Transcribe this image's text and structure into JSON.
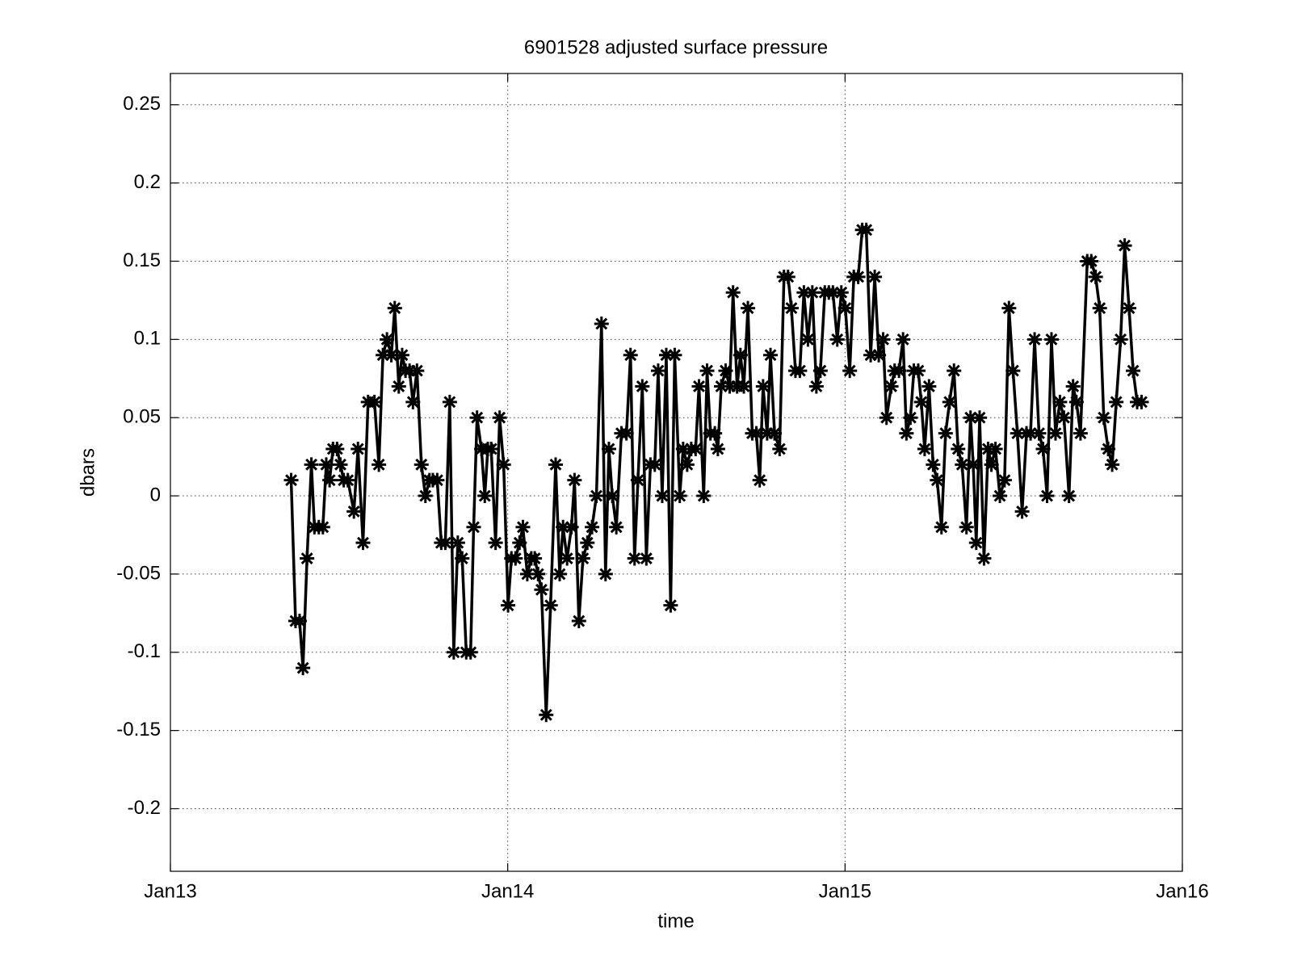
{
  "chart_data": {
    "type": "line",
    "title": "6901528 adjusted surface pressure",
    "xlabel": "time",
    "ylabel": "dbars",
    "color": "#000000",
    "marker": "asterisk",
    "grid": true,
    "xlim": [
      2013,
      2016
    ],
    "xticks": [
      {
        "value": 2013,
        "label": "Jan13"
      },
      {
        "value": 2014,
        "label": "Jan14"
      },
      {
        "value": 2015,
        "label": "Jan15"
      },
      {
        "value": 2016,
        "label": "Jan16"
      }
    ],
    "ylim": [
      -0.24,
      0.27
    ],
    "yticks": [
      -0.2,
      -0.15,
      -0.1,
      -0.05,
      0,
      0.05,
      0.1,
      0.15,
      0.2,
      0.25
    ],
    "x": [
      2013.358,
      2013.371,
      2013.383,
      2013.393,
      2013.405,
      2013.418,
      2013.427,
      2013.44,
      2013.452,
      2013.462,
      2013.472,
      2013.482,
      2013.494,
      2013.504,
      2013.514,
      2013.526,
      2013.544,
      2013.556,
      2013.571,
      2013.586,
      2013.605,
      2013.618,
      2013.63,
      2013.642,
      2013.655,
      2013.665,
      2013.677,
      2013.687,
      2013.697,
      2013.709,
      2013.719,
      2013.731,
      2013.744,
      2013.756,
      2013.768,
      2013.778,
      2013.791,
      2013.803,
      2013.815,
      2013.828,
      2013.84,
      2013.852,
      2013.865,
      2013.877,
      2013.89,
      2013.899,
      2013.909,
      2013.922,
      2013.932,
      2013.941,
      2013.951,
      2013.964,
      2013.976,
      2013.988,
      2014.001,
      2014.011,
      2014.023,
      2014.035,
      2014.045,
      2014.058,
      2014.07,
      2014.08,
      2014.09,
      2014.1,
      2014.114,
      2014.127,
      2014.142,
      2014.154,
      2014.164,
      2014.176,
      2014.189,
      2014.198,
      2014.211,
      2014.223,
      2014.236,
      2014.25,
      2014.263,
      2014.278,
      2014.29,
      2014.3,
      2014.31,
      2014.322,
      2014.337,
      2014.352,
      2014.364,
      2014.376,
      2014.386,
      2014.399,
      2014.411,
      2014.423,
      2014.436,
      2014.446,
      2014.458,
      2014.47,
      2014.483,
      2014.495,
      2014.51,
      2014.52,
      2014.532,
      2014.544,
      2014.557,
      2014.567,
      2014.581,
      2014.591,
      2014.601,
      2014.614,
      2014.623,
      2014.633,
      2014.646,
      2014.658,
      2014.668,
      2014.68,
      2014.69,
      2014.7,
      2014.712,
      2014.725,
      2014.737,
      2014.747,
      2014.757,
      2014.769,
      2014.779,
      2014.791,
      2014.806,
      2014.819,
      2014.831,
      2014.841,
      2014.853,
      2014.866,
      2014.878,
      2014.89,
      2014.903,
      2014.915,
      2014.927,
      2014.94,
      2014.952,
      2014.964,
      2014.977,
      2014.989,
      2015.001,
      2015.014,
      2015.026,
      2015.039,
      2015.051,
      2015.063,
      2015.076,
      2015.088,
      2015.1,
      2015.113,
      2015.123,
      2015.137,
      2015.147,
      2015.16,
      2015.172,
      2015.182,
      2015.194,
      2015.204,
      2015.217,
      2015.226,
      2015.236,
      2015.249,
      2015.261,
      2015.273,
      2015.286,
      2015.298,
      2015.31,
      2015.323,
      2015.335,
      2015.347,
      2015.36,
      2015.372,
      2015.38,
      2015.389,
      2015.399,
      2015.412,
      2015.424,
      2015.434,
      2015.446,
      2015.459,
      2015.473,
      2015.486,
      2015.498,
      2015.511,
      2015.525,
      2015.538,
      2015.55,
      2015.562,
      2015.575,
      2015.587,
      2015.599,
      2015.612,
      2015.624,
      2015.637,
      2015.649,
      2015.664,
      2015.676,
      2015.686,
      2015.698,
      2015.718,
      2015.73,
      2015.743,
      2015.755,
      2015.767,
      2015.78,
      2015.792,
      2015.804,
      2015.817,
      2015.829,
      2015.842,
      2015.854,
      2015.866,
      2015.879
    ],
    "values": [
      0.01,
      -0.08,
      -0.08,
      -0.11,
      -0.04,
      0.02,
      -0.02,
      -0.02,
      -0.02,
      0.02,
      0.01,
      0.03,
      0.03,
      0.02,
      0.01,
      0.01,
      -0.01,
      0.03,
      -0.03,
      0.06,
      0.06,
      0.02,
      0.09,
      0.1,
      0.09,
      0.12,
      0.07,
      0.09,
      0.08,
      0.08,
      0.06,
      0.08,
      0.02,
      0,
      0.01,
      0.01,
      0.01,
      -0.03,
      -0.03,
      0.06,
      -0.1,
      -0.03,
      -0.04,
      -0.1,
      -0.1,
      -0.02,
      0.05,
      0.03,
      0,
      0.03,
      0.03,
      -0.03,
      0.05,
      0.02,
      -0.07,
      -0.04,
      -0.04,
      -0.03,
      -0.02,
      -0.05,
      -0.04,
      -0.04,
      -0.05,
      -0.06,
      -0.14,
      -0.07,
      0.02,
      -0.05,
      -0.02,
      -0.04,
      -0.02,
      0.01,
      -0.08,
      -0.04,
      -0.03,
      -0.02,
      0,
      0.11,
      -0.05,
      0.03,
      0,
      -0.02,
      0.04,
      0.04,
      0.09,
      -0.04,
      0.01,
      0.07,
      -0.04,
      0.02,
      0.02,
      0.08,
      0,
      0.09,
      -0.07,
      0.09,
      0,
      0.03,
      0.02,
      0.03,
      0.03,
      0.07,
      0,
      0.08,
      0.04,
      0.04,
      0.03,
      0.07,
      0.08,
      0.07,
      0.13,
      0.07,
      0.09,
      0.07,
      0.12,
      0.04,
      0.04,
      0.01,
      0.07,
      0.04,
      0.09,
      0.04,
      0.03,
      0.14,
      0.14,
      0.12,
      0.08,
      0.08,
      0.13,
      0.1,
      0.13,
      0.07,
      0.08,
      0.13,
      0.13,
      0.13,
      0.1,
      0.13,
      0.12,
      0.08,
      0.14,
      0.14,
      0.17,
      0.17,
      0.09,
      0.14,
      0.09,
      0.1,
      0.05,
      0.07,
      0.08,
      0.08,
      0.1,
      0.04,
      0.05,
      0.08,
      0.08,
      0.06,
      0.03,
      0.07,
      0.02,
      0.01,
      -0.02,
      0.04,
      0.06,
      0.08,
      0.03,
      0.02,
      -0.02,
      0.05,
      0.02,
      -0.03,
      0.05,
      -0.04,
      0.03,
      0.02,
      0.03,
      0,
      0.01,
      0.12,
      0.08,
      0.04,
      -0.01,
      0.04,
      0.04,
      0.1,
      0.04,
      0.03,
      0,
      0.1,
      0.04,
      0.06,
      0.05,
      0,
      0.07,
      0.06,
      0.04,
      0.15,
      0.15,
      0.14,
      0.12,
      0.05,
      0.03,
      0.02,
      0.06,
      0.1,
      0.16,
      0.12,
      0.08,
      0.06,
      0.06
    ]
  }
}
